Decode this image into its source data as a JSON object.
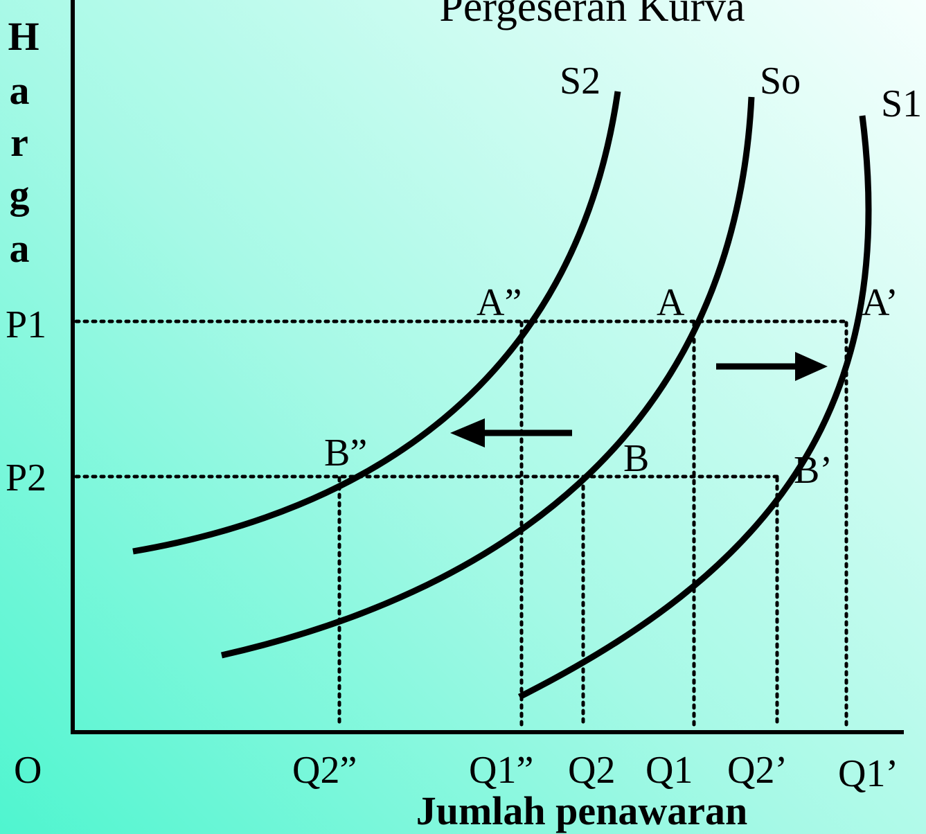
{
  "title": "Pergeseran Kurva",
  "y_axis_letters": [
    "H",
    "a",
    "r",
    "g",
    "a"
  ],
  "x_axis_label": "Jumlah penawaran",
  "origin_label": "O",
  "price_labels": {
    "p1": "P1",
    "p2": "P2"
  },
  "quantity_labels": {
    "q2_dprime": "Q2”",
    "q1_dprime": "Q1”",
    "q2": "Q2",
    "q1": "Q1",
    "q2_prime": "Q2’",
    "q1_prime": "Q1’"
  },
  "curve_labels": {
    "s2": "S2",
    "so": "So",
    "s1": "S1"
  },
  "point_labels": {
    "a_dprime": "A”",
    "a": "A",
    "a_prime": "A’",
    "b_dprime": "B”",
    "b": "B",
    "b_prime": "B’"
  },
  "arrows": {
    "left": "shift-left",
    "right": "shift-right"
  }
}
